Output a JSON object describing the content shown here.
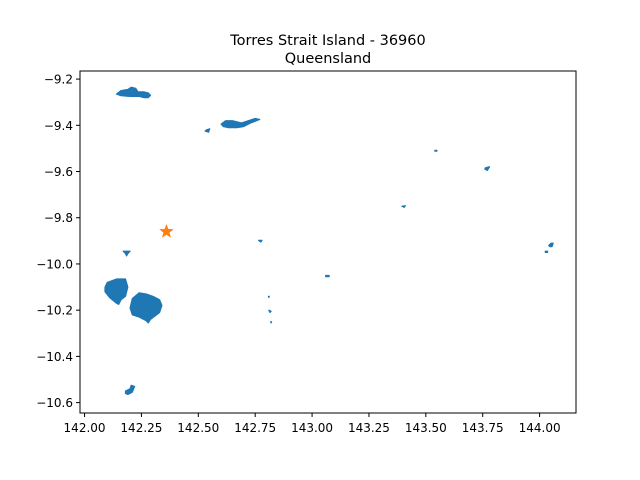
{
  "chart_data": {
    "type": "map",
    "title": "Torres Strait Island - 36960",
    "subtitle": "Queensland",
    "xlim": [
      141.98,
      144.16
    ],
    "ylim": [
      -10.645,
      -9.165
    ],
    "x_ticks": [
      {
        "value": 142.0,
        "label": "142.00"
      },
      {
        "value": 142.25,
        "label": "142.25"
      },
      {
        "value": 142.5,
        "label": "142.50"
      },
      {
        "value": 142.75,
        "label": "142.75"
      },
      {
        "value": 143.0,
        "label": "143.00"
      },
      {
        "value": 143.25,
        "label": "143.25"
      },
      {
        "value": 143.5,
        "label": "143.50"
      },
      {
        "value": 143.75,
        "label": "143.75"
      },
      {
        "value": 144.0,
        "label": "144.00"
      }
    ],
    "y_ticks": [
      {
        "value": -9.2,
        "label": "−9.2"
      },
      {
        "value": -9.4,
        "label": "−9.4"
      },
      {
        "value": -9.6,
        "label": "−9.6"
      },
      {
        "value": -9.8,
        "label": "−9.8"
      },
      {
        "value": -10.0,
        "label": "−10.0"
      },
      {
        "value": -10.2,
        "label": "−10.2"
      },
      {
        "value": -10.4,
        "label": "−10.4"
      },
      {
        "value": -10.6,
        "label": "−10.6"
      }
    ],
    "region_color": "#1f77b4",
    "marker_color": "#ff7f0e",
    "marker": {
      "lon": 142.36,
      "lat": -9.86
    },
    "islands": [
      {
        "name": "northwest-island",
        "points": [
          [
            142.14,
            -9.265
          ],
          [
            142.16,
            -9.25
          ],
          [
            142.19,
            -9.245
          ],
          [
            142.205,
            -9.235
          ],
          [
            142.225,
            -9.24
          ],
          [
            142.235,
            -9.255
          ],
          [
            142.26,
            -9.255
          ],
          [
            142.28,
            -9.26
          ],
          [
            142.29,
            -9.27
          ],
          [
            142.28,
            -9.28
          ],
          [
            142.26,
            -9.28
          ],
          [
            142.24,
            -9.275
          ],
          [
            142.2,
            -9.275
          ],
          [
            142.16,
            -9.272
          ]
        ]
      },
      {
        "name": "north-central-island",
        "points": [
          [
            142.6,
            -9.395
          ],
          [
            142.62,
            -9.38
          ],
          [
            142.65,
            -9.38
          ],
          [
            142.69,
            -9.39
          ],
          [
            142.72,
            -9.38
          ],
          [
            142.75,
            -9.37
          ],
          [
            142.77,
            -9.375
          ],
          [
            142.73,
            -9.39
          ],
          [
            142.7,
            -9.405
          ],
          [
            142.67,
            -9.41
          ],
          [
            142.63,
            -9.41
          ],
          [
            142.61,
            -9.405
          ]
        ]
      },
      {
        "name": "small-island-1",
        "points": [
          [
            142.535,
            -9.42
          ],
          [
            142.55,
            -9.415
          ],
          [
            142.545,
            -9.43
          ],
          [
            142.53,
            -9.425
          ]
        ]
      },
      {
        "name": "small-island-2",
        "points": [
          [
            143.76,
            -9.585
          ],
          [
            143.775,
            -9.58
          ],
          [
            143.78,
            -9.58
          ],
          [
            143.77,
            -9.595
          ],
          [
            143.76,
            -9.59
          ]
        ]
      },
      {
        "name": "small-island-3",
        "points": [
          [
            143.395,
            -9.75
          ],
          [
            143.41,
            -9.748
          ],
          [
            143.405,
            -9.755
          ]
        ]
      },
      {
        "name": "small-island-4",
        "points": [
          [
            142.765,
            -9.898
          ],
          [
            142.78,
            -9.898
          ],
          [
            142.775,
            -9.905
          ]
        ]
      },
      {
        "name": "small-island-5",
        "points": [
          [
            144.04,
            -9.92
          ],
          [
            144.05,
            -9.91
          ],
          [
            144.06,
            -9.91
          ],
          [
            144.055,
            -9.925
          ],
          [
            144.045,
            -9.925
          ]
        ]
      },
      {
        "name": "small-island-6",
        "points": [
          [
            144.025,
            -9.945
          ],
          [
            144.035,
            -9.945
          ],
          [
            144.035,
            -9.95
          ],
          [
            144.025,
            -9.95
          ]
        ]
      },
      {
        "name": "small-island-7",
        "points": [
          [
            142.17,
            -9.945
          ],
          [
            142.2,
            -9.945
          ],
          [
            142.19,
            -9.955
          ],
          [
            142.185,
            -9.965
          ],
          [
            142.18,
            -9.955
          ]
        ]
      },
      {
        "name": "small-island-8",
        "points": [
          [
            143.06,
            -10.05
          ],
          [
            143.075,
            -10.05
          ],
          [
            143.075,
            -10.055
          ],
          [
            143.06,
            -10.055
          ]
        ]
      },
      {
        "name": "west-island",
        "points": [
          [
            142.09,
            -10.1
          ],
          [
            142.1,
            -10.08
          ],
          [
            142.14,
            -10.065
          ],
          [
            142.18,
            -10.065
          ],
          [
            142.19,
            -10.1
          ],
          [
            142.18,
            -10.14
          ],
          [
            142.16,
            -10.155
          ],
          [
            142.15,
            -10.175
          ],
          [
            142.14,
            -10.17
          ],
          [
            142.11,
            -10.145
          ],
          [
            142.09,
            -10.12
          ]
        ]
      },
      {
        "name": "southwest-large-island",
        "points": [
          [
            142.2,
            -10.19
          ],
          [
            142.21,
            -10.15
          ],
          [
            142.24,
            -10.125
          ],
          [
            142.27,
            -10.13
          ],
          [
            142.3,
            -10.14
          ],
          [
            142.33,
            -10.155
          ],
          [
            142.34,
            -10.18
          ],
          [
            142.33,
            -10.21
          ],
          [
            142.31,
            -10.225
          ],
          [
            142.29,
            -10.24
          ],
          [
            142.28,
            -10.255
          ],
          [
            142.27,
            -10.245
          ],
          [
            142.24,
            -10.23
          ],
          [
            142.21,
            -10.22
          ]
        ]
      },
      {
        "name": "small-island-9",
        "points": [
          [
            142.81,
            -10.2
          ],
          [
            142.82,
            -10.205
          ],
          [
            142.815,
            -10.21
          ]
        ]
      },
      {
        "name": "small-island-10",
        "points": [
          [
            142.808,
            -10.14
          ],
          [
            142.812,
            -10.14
          ],
          [
            142.81,
            -10.145
          ]
        ]
      },
      {
        "name": "small-island-11",
        "points": [
          [
            142.818,
            -10.25
          ],
          [
            142.822,
            -10.25
          ],
          [
            142.82,
            -10.255
          ]
        ]
      },
      {
        "name": "south-island",
        "points": [
          [
            142.18,
            -10.55
          ],
          [
            142.2,
            -10.54
          ],
          [
            142.205,
            -10.525
          ],
          [
            142.22,
            -10.53
          ],
          [
            142.21,
            -10.555
          ],
          [
            142.19,
            -10.565
          ],
          [
            142.18,
            -10.56
          ]
        ]
      },
      {
        "name": "small-island-12",
        "points": [
          [
            143.54,
            -9.508
          ],
          [
            143.548,
            -9.508
          ],
          [
            143.548,
            -9.512
          ],
          [
            143.54,
            -9.512
          ]
        ]
      }
    ]
  }
}
